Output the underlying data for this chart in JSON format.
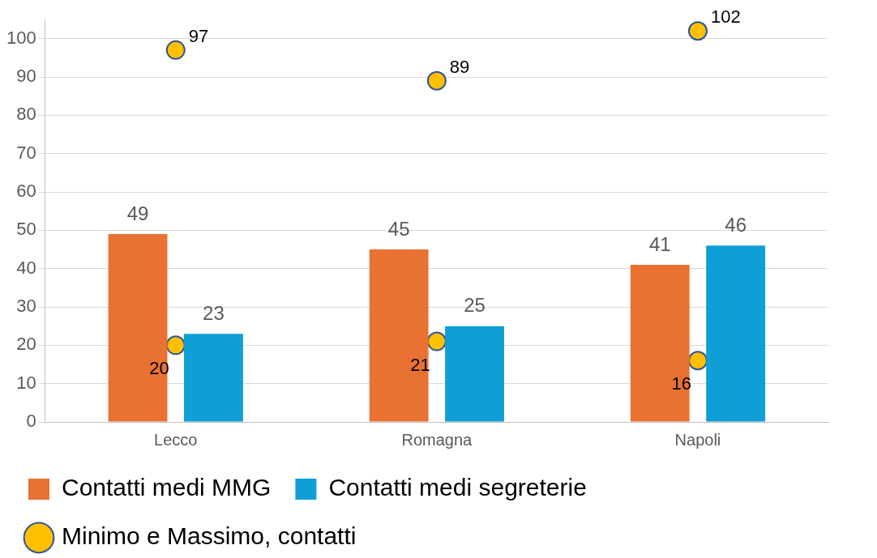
{
  "chart_data": {
    "type": "bar",
    "categories": [
      "Lecco",
      "Romagna",
      "Napoli"
    ],
    "series": [
      {
        "name": "Contatti medi MMG",
        "color": "#e97132",
        "values": [
          49,
          45,
          41
        ]
      },
      {
        "name": "Contatti medi segreterie",
        "color": "#0f9ed5",
        "values": [
          23,
          25,
          46
        ]
      },
      {
        "name": "Minimo e Massimo, contatti",
        "type": "scatter",
        "color": "#ffc000",
        "x": [
          "Lecco",
          "Lecco",
          "Romagna",
          "Romagna",
          "Napoli",
          "Napoli"
        ],
        "values": [
          97,
          20,
          89,
          21,
          102,
          16
        ]
      }
    ],
    "ylim": [
      0,
      105
    ],
    "yticks": [
      0,
      10,
      20,
      30,
      40,
      50,
      60,
      70,
      80,
      90,
      100
    ],
    "grid": "y",
    "legend": "bottom",
    "data_labels": true,
    "marker": "circle"
  }
}
